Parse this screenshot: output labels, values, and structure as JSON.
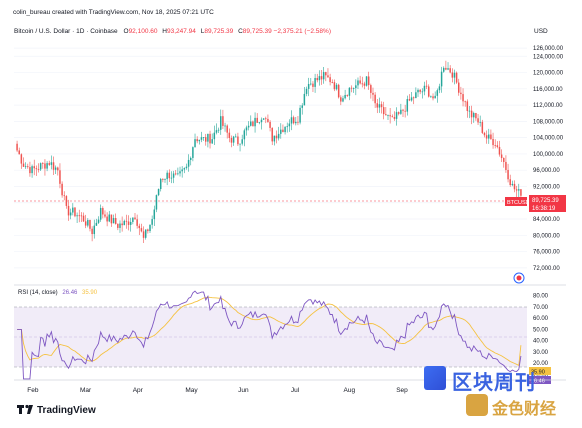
{
  "header": {
    "credit": "colin_bureau created with TradingView.com, Nov 18, 2025 07:21 UTC",
    "symbol": "Bitcoin / U.S. Dollar · 1D · Coinbase",
    "o_label": "O",
    "o_value": "92,100.60",
    "h_label": "H",
    "h_value": "93,247.94",
    "l_label": "L",
    "l_value": "89,725.39",
    "c_label": "C",
    "c_value": "89,725.39 −2,375.21 (−2.58%)"
  },
  "price_axis": {
    "currency": "USD",
    "ticks": [
      "126,000.00",
      "124,000.00",
      "120,000.00",
      "116,000.00",
      "112,000.00",
      "108,000.00",
      "104,000.00",
      "100,000.00",
      "96,000.00",
      "92,000.00",
      "88,000.00",
      "84,000.00",
      "80,000.00",
      "76,000.00",
      "72,000.00"
    ]
  },
  "current_price": {
    "symbol_label": "BTCUSD",
    "price": "89,725.39",
    "countdown": "16:38:19",
    "color": "#f23645"
  },
  "rsi": {
    "label": "RSI (14, close)",
    "value": "26.46",
    "ma_value": "35.90",
    "ticks": [
      "80.00",
      "70.00",
      "60.00",
      "50.00",
      "40.00",
      "30.00",
      "20.00",
      "10.00"
    ],
    "badge_ma": "35.90",
    "badge_rsi": "26.46",
    "line_color": "#7e57c2",
    "ma_color": "#f5c242"
  },
  "time_axis": [
    "Feb",
    "Mar",
    "Apr",
    "May",
    "Jun",
    "Jul",
    "Aug",
    "Sep"
  ],
  "footer": {
    "brand": "TradingView"
  },
  "watermark": {
    "line1": "区块周刊",
    "line2": "金色财经"
  },
  "colors": {
    "up": "#26a69a",
    "down": "#ef5350",
    "grid": "#f0f3fa",
    "rsi_band": "#ede7f6"
  },
  "chart_data": {
    "type": "candlestick",
    "title": "Bitcoin / U.S. Dollar · 1D · Coinbase",
    "ylabel": "USD",
    "ylim": [
      70000,
      128000
    ],
    "x_labels": [
      "Feb",
      "Mar",
      "Apr",
      "May",
      "Jun",
      "Jul",
      "Aug",
      "Sep"
    ],
    "weekly_closes_approx": [
      102000,
      97500,
      96000,
      97000,
      98000,
      96000,
      86000,
      85500,
      84000,
      81000,
      86000,
      84000,
      82500,
      83000,
      85000,
      79000,
      84000,
      94000,
      95000,
      94000,
      96500,
      104000,
      103500,
      104000,
      108000,
      104000,
      103000,
      106000,
      108000,
      110000,
      104000,
      106000,
      108000,
      109000,
      117000,
      118000,
      119000,
      118000,
      114000,
      116000,
      117000,
      118000,
      112000,
      110000,
      108000,
      110000,
      113000,
      115000,
      116000,
      113000,
      122000,
      120000,
      115000,
      110000,
      108000,
      104000,
      103000,
      98000,
      92000,
      89725
    ],
    "rsi": {
      "ylim": [
        10,
        80
      ],
      "overbought": 70,
      "oversold": 30,
      "last_value": 26.46,
      "ma_last_value": 35.9
    }
  }
}
